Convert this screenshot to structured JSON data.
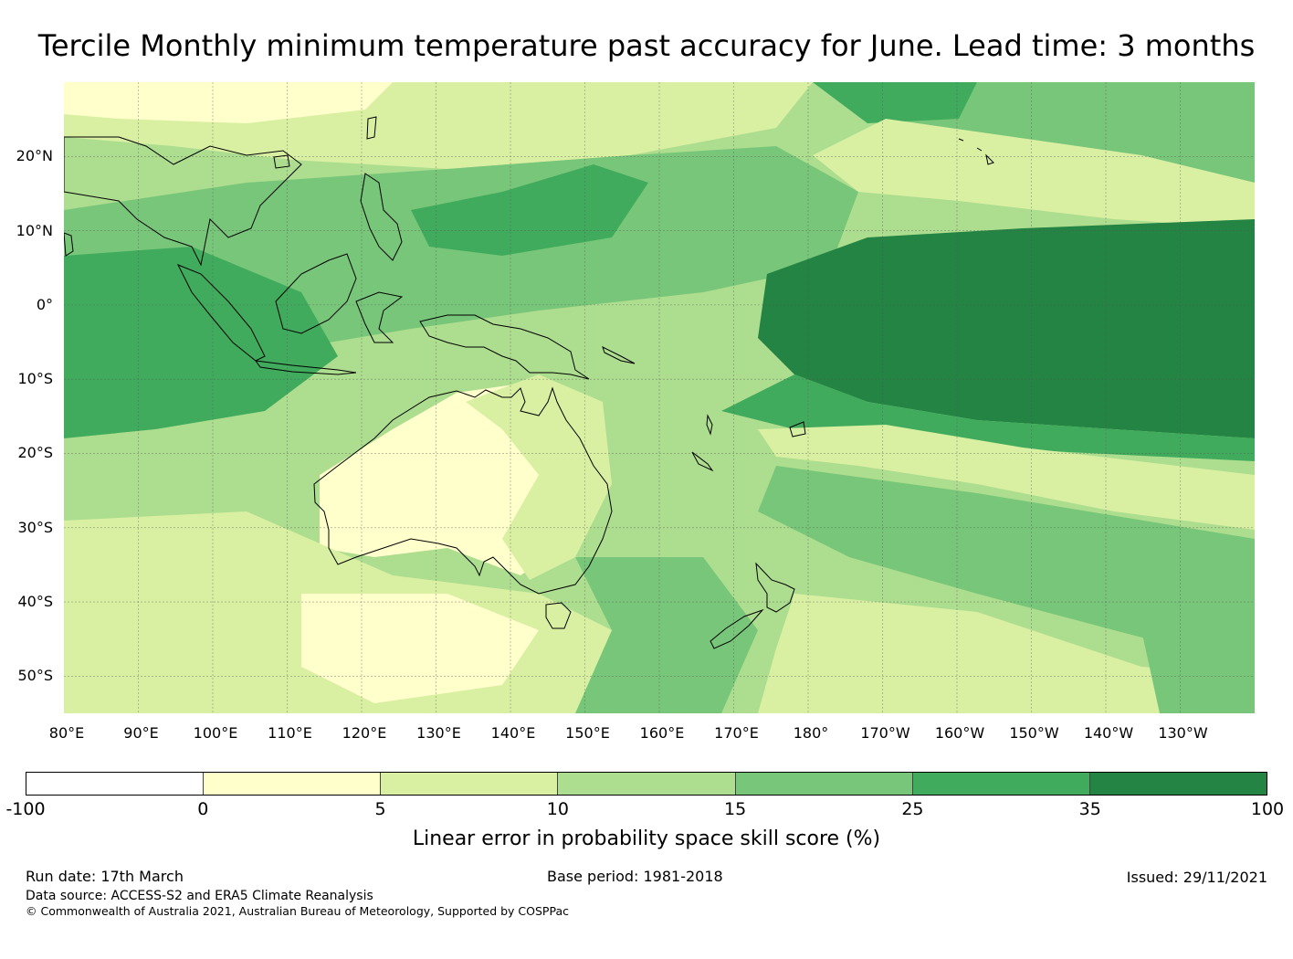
{
  "title": "Tercile Monthly minimum temperature past accuracy for June. Lead time: 3 months",
  "map": {
    "lat_labels": [
      "20°N",
      "10°N",
      "0°",
      "10°S",
      "20°S",
      "30°S",
      "40°S",
      "50°S"
    ],
    "lon_labels": [
      "80°E",
      "90°E",
      "100°E",
      "110°E",
      "120°E",
      "130°E",
      "140°E",
      "150°E",
      "160°E",
      "170°E",
      "180°",
      "170°W",
      "160°W",
      "150°W",
      "140°W",
      "130°W"
    ],
    "extent": {
      "lon_min": 80,
      "lon_max": 240,
      "lat_min": -55,
      "lat_max": 30
    },
    "coastline_color": "#000000",
    "gridline_color": "#555555"
  },
  "colorbar": {
    "ticks": [
      "-100",
      "0",
      "5",
      "10",
      "15",
      "25",
      "35",
      "100"
    ],
    "colors": [
      "#ffffff",
      "#ffffcc",
      "#d9f0a3",
      "#addd8e",
      "#78c679",
      "#41ab5d",
      "#238443"
    ],
    "label": "Linear error in probability space skill score (%)"
  },
  "footer": {
    "run_date": "Run date: 17th March",
    "base_period": "Base period: 1981-2018",
    "issued": "Issued: 29/11/2021",
    "data_source": "Data source: ACCESS-S2 and ERA5 Climate Reanalysis",
    "copyright": "© Commonwealth of Australia 2021, Australian Bureau of Meteorology, Supported by COSPPac"
  }
}
